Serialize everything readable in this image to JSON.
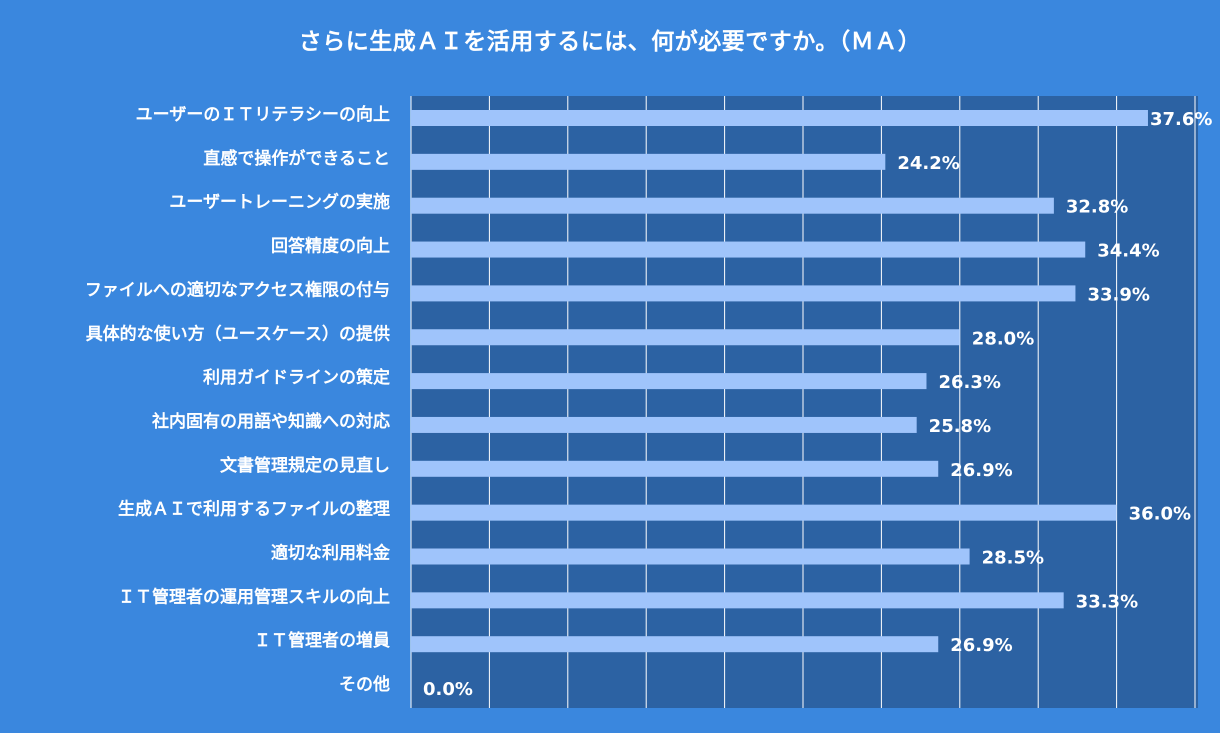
{
  "chart_data": {
    "type": "bar",
    "orientation": "horizontal",
    "title": "さらに生成ＡＩを活用するには、何が必要ですか。（ＭＡ）",
    "categories": [
      "ユーザーのＩＴリテラシーの向上",
      "直感で操作ができること",
      "ユーザートレーニングの実施",
      "回答精度の向上",
      "ファイルへの適切なアクセス権限の付与",
      "具体的な使い方（ユースケース）の提供",
      "利用ガイドラインの策定",
      "社内固有の用語や知識への対応",
      "文書管理規定の見直し",
      "生成ＡＩで利用するファイルの整理",
      "適切な利用料金",
      "ＩＴ管理者の運用管理スキルの向上",
      "ＩＴ管理者の増員",
      "その他"
    ],
    "values": [
      37.6,
      24.2,
      32.8,
      34.4,
      33.9,
      28.0,
      26.3,
      25.8,
      26.9,
      36.0,
      28.5,
      33.3,
      26.9,
      0.0
    ],
    "value_labels": [
      "37.6%",
      "24.2%",
      "32.8%",
      "34.4%",
      "33.9%",
      "28.0%",
      "26.3%",
      "25.8%",
      "26.9%",
      "36.0%",
      "28.5%",
      "33.3%",
      "26.9%",
      "0.0%"
    ],
    "xlim": [
      0,
      40
    ],
    "grid": true,
    "legend": "none",
    "colors": {
      "background": "#3a87de",
      "plot_area": "#2c62a3",
      "bar": "#9fc4fb",
      "gridline": "#ffffff",
      "text": "#ffffff"
    }
  }
}
